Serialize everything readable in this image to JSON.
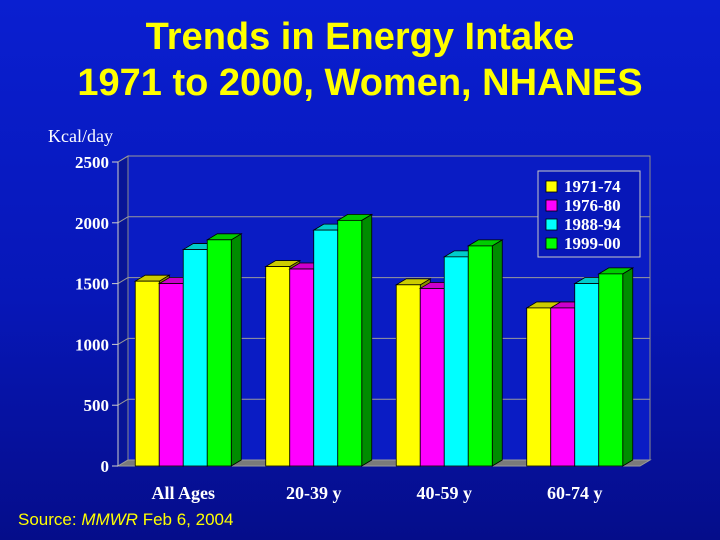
{
  "title_line1": "Trends in Energy Intake",
  "title_line2": "1971 to 2000, Women, NHANES",
  "source": {
    "prefix": "Source: ",
    "journal": "MMWR",
    "date": " Feb 6, 2004"
  },
  "chart_data": {
    "type": "bar",
    "ylabel": "Kcal/day",
    "ylim": [
      0,
      2500
    ],
    "yticks": [
      0,
      500,
      1000,
      1500,
      2000,
      2500
    ],
    "grid": true,
    "legend_position": "top-right",
    "categories": [
      "All Ages",
      "20-39 y",
      "40-59 y",
      "60-74 y"
    ],
    "series": [
      {
        "name": "1971-74",
        "color": "#ffff00",
        "values": [
          1520,
          1640,
          1490,
          1300
        ]
      },
      {
        "name": "1976-80",
        "color": "#ff00ff",
        "values": [
          1500,
          1620,
          1460,
          1300
        ]
      },
      {
        "name": "1988-94",
        "color": "#00ffff",
        "values": [
          1780,
          1940,
          1720,
          1500
        ]
      },
      {
        "name": "1999-00",
        "color": "#00ff00",
        "values": [
          1860,
          2020,
          1810,
          1580
        ]
      }
    ]
  }
}
